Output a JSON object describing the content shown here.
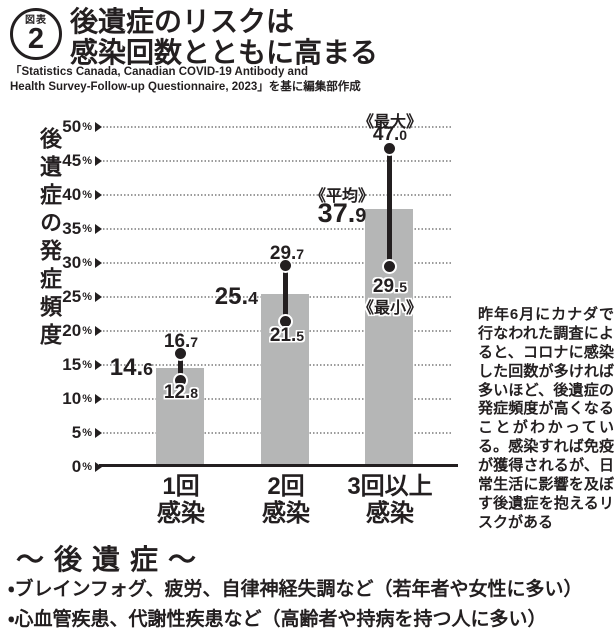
{
  "figure_badge": {
    "label_top": "図表",
    "number": "2"
  },
  "title": {
    "line1": "後遺症のリスクは",
    "line2": "感染回数とともに高まる"
  },
  "source": {
    "line1": "「Statistics Canada, Canadian COVID-19 Antibody and",
    "line2": "Health Survey-Follow-up Questionnaire, 2023」を基に編集部作成"
  },
  "chart_data": {
    "type": "bar",
    "title": "後遺症のリスクは感染回数とともに高まる",
    "ylabel": "後遺症の発症頻度",
    "xlabel": "",
    "ylim": [
      0,
      50
    ],
    "grid": "dotted-horizontal",
    "legend_position": "none",
    "categories": [
      "1回感染",
      "2回感染",
      "3回以上感染"
    ],
    "series": [
      {
        "name": "平均",
        "values": [
          14.6,
          25.4,
          37.9
        ]
      },
      {
        "name": "最大",
        "values": [
          16.7,
          29.7,
          47.0
        ]
      },
      {
        "name": "最小",
        "values": [
          12.8,
          21.5,
          29.5
        ]
      }
    ],
    "yaxis": {
      "percent_suffix": "%",
      "ticks": [
        "50",
        "45",
        "40",
        "35",
        "30",
        "25",
        "20",
        "15",
        "10",
        "5",
        "0"
      ]
    },
    "bars": [
      {
        "cat_line1": "1回",
        "cat_line2": "感染",
        "mean": "14.6",
        "max": "16.7",
        "min": "12.8"
      },
      {
        "cat_line1": "2回",
        "cat_line2": "感染",
        "mean": "25.4",
        "max": "29.7",
        "min": "21.5"
      },
      {
        "cat_line1": "3回以上",
        "cat_line2": "感染",
        "mean": "37.9",
        "max": "47.0",
        "min": "29.5",
        "mean_tag": "《平均》",
        "max_tag": "《最大》",
        "min_tag": "《最小》"
      }
    ],
    "colors": {
      "bar": "#b5b6b6",
      "ink": "#231f20",
      "grid": "#9b9b9b"
    }
  },
  "side_note": "昨年6月にカナダで行なわれた調査によると、コロナに感染した回数が多ければ多いほど、後遺症の発症頻度が高くなることがわかっている。感染すれば免疫が獲得されるが、日常生活に影響を及ぼす後遺症を抱えるリスクがある",
  "footer": {
    "heading": "～後遺症～",
    "bullets": [
      "・ブレインフォグ、疲労、自律神経失調など（若年者や女性に多い）",
      "・心血管疾患、代謝性疾患など（高齢者や持病を持つ人に多い）"
    ]
  }
}
